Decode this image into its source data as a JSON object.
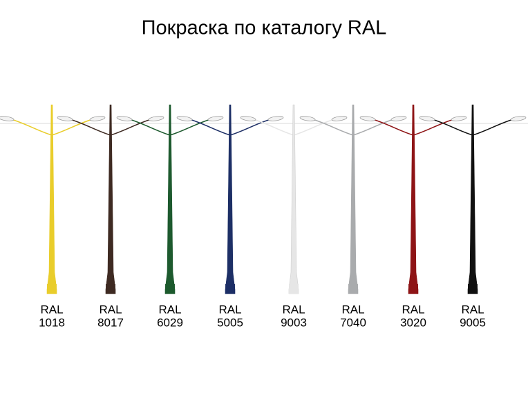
{
  "title": "Покраска по каталогу RAL",
  "poles": [
    {
      "label": "RAL",
      "code": "1018",
      "color": "#e9cd2b"
    },
    {
      "label": "RAL",
      "code": "8017",
      "color": "#3e2a22"
    },
    {
      "label": "RAL",
      "code": "6029",
      "color": "#1d5a2e"
    },
    {
      "label": "RAL",
      "code": "5005",
      "color": "#1d2f66"
    },
    {
      "label": "RAL",
      "code": "9003",
      "color": "#e6e6e6"
    },
    {
      "label": "RAL",
      "code": "7040",
      "color": "#a9abad"
    },
    {
      "label": "RAL",
      "code": "3020",
      "color": "#8e1416"
    },
    {
      "label": "RAL",
      "code": "9005",
      "color": "#111111"
    }
  ]
}
